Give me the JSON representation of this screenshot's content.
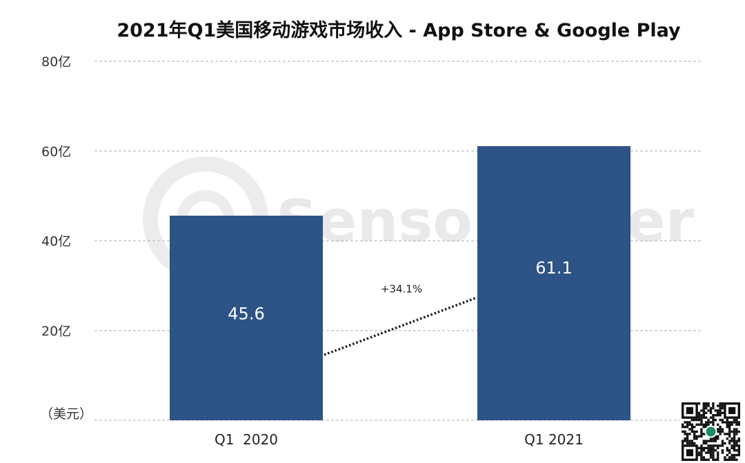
{
  "chart_data": {
    "type": "bar",
    "title": "2021年Q1美国移动游戏市场收入 - App Store & Google Play",
    "categories": [
      "Q1  2020",
      "Q1 2021"
    ],
    "values": [
      45.6,
      61.1
    ],
    "value_labels": [
      "45.6",
      "61.1"
    ],
    "unit_label": "（美元）",
    "ylim": [
      0,
      80
    ],
    "yticks": [
      {
        "value": 20,
        "label": "20亿"
      },
      {
        "value": 40,
        "label": "40亿"
      },
      {
        "value": 60,
        "label": "60亿"
      },
      {
        "value": 80,
        "label": "80亿"
      }
    ],
    "growth_label": "+34.1%",
    "grid": true,
    "bar_color": "#2d5387"
  },
  "watermark": {
    "text": "SensorTower"
  }
}
